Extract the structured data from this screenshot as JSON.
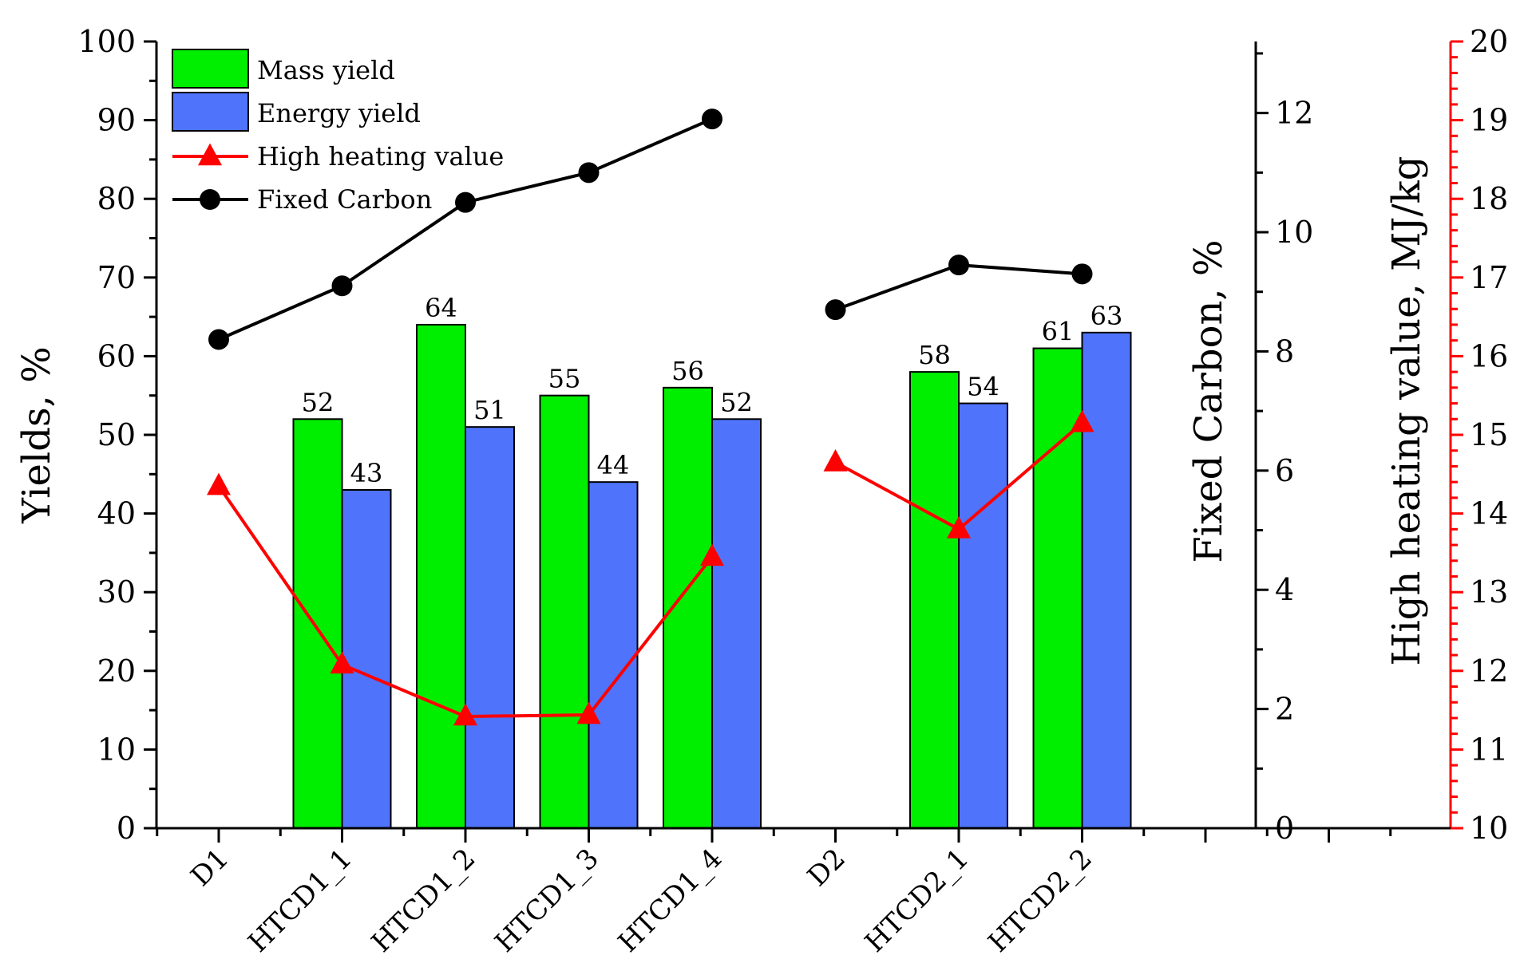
{
  "chart_data": {
    "type": "bar",
    "categories": [
      "D1",
      "HTCD1_1",
      "HTCD1_2",
      "HTCD1_3",
      "HTCD1_4",
      "D2",
      "HTCD2_1",
      "HTCD2_2"
    ],
    "series": [
      {
        "name": "Mass yield",
        "kind": "bar",
        "axis": "yields",
        "color": "#00ee00",
        "values": [
          null,
          52,
          64,
          55,
          56,
          null,
          58,
          61
        ]
      },
      {
        "name": "Energy yield",
        "kind": "bar",
        "axis": "yields",
        "color": "#4f74fb",
        "values": [
          null,
          43,
          51,
          44,
          52,
          null,
          54,
          63
        ]
      },
      {
        "name": "High heating value",
        "kind": "line",
        "marker": "triangle",
        "axis": "hhv",
        "color": "#ff0000",
        "values": [
          14.35,
          12.08,
          11.42,
          11.44,
          13.45,
          14.65,
          13.8,
          15.15
        ]
      },
      {
        "name": "Fixed Carbon",
        "kind": "line",
        "marker": "circle",
        "axis": "fixed_carbon",
        "color": "#000000",
        "values": [
          8.2,
          9.1,
          10.5,
          11.0,
          11.9,
          8.7,
          9.45,
          9.3
        ]
      }
    ],
    "line_segments": [
      [
        0,
        4
      ],
      [
        5,
        7
      ]
    ],
    "axes": {
      "yields": {
        "title": "Yields, %",
        "range": [
          0,
          100
        ],
        "ticks": [
          "0",
          "10",
          "20",
          "30",
          "40",
          "50",
          "60",
          "70",
          "80",
          "90",
          "100"
        ]
      },
      "fixed_carbon": {
        "title": "Fixed Carbon, %",
        "range": [
          0,
          13.2
        ],
        "ticks": [
          "0",
          "2",
          "4",
          "6",
          "8",
          "10",
          "12"
        ]
      },
      "hhv": {
        "title": "High heating value, MJ/kg",
        "range": [
          10,
          20
        ],
        "ticks": [
          "10",
          "11",
          "12",
          "13",
          "14",
          "15",
          "16",
          "17",
          "18",
          "19",
          "20"
        ],
        "color": "#ff0000"
      }
    },
    "legend": {
      "position": "top-left",
      "entries": [
        "Mass yield",
        "Energy yield",
        "High heating value",
        "Fixed Carbon"
      ]
    },
    "grid": false
  }
}
